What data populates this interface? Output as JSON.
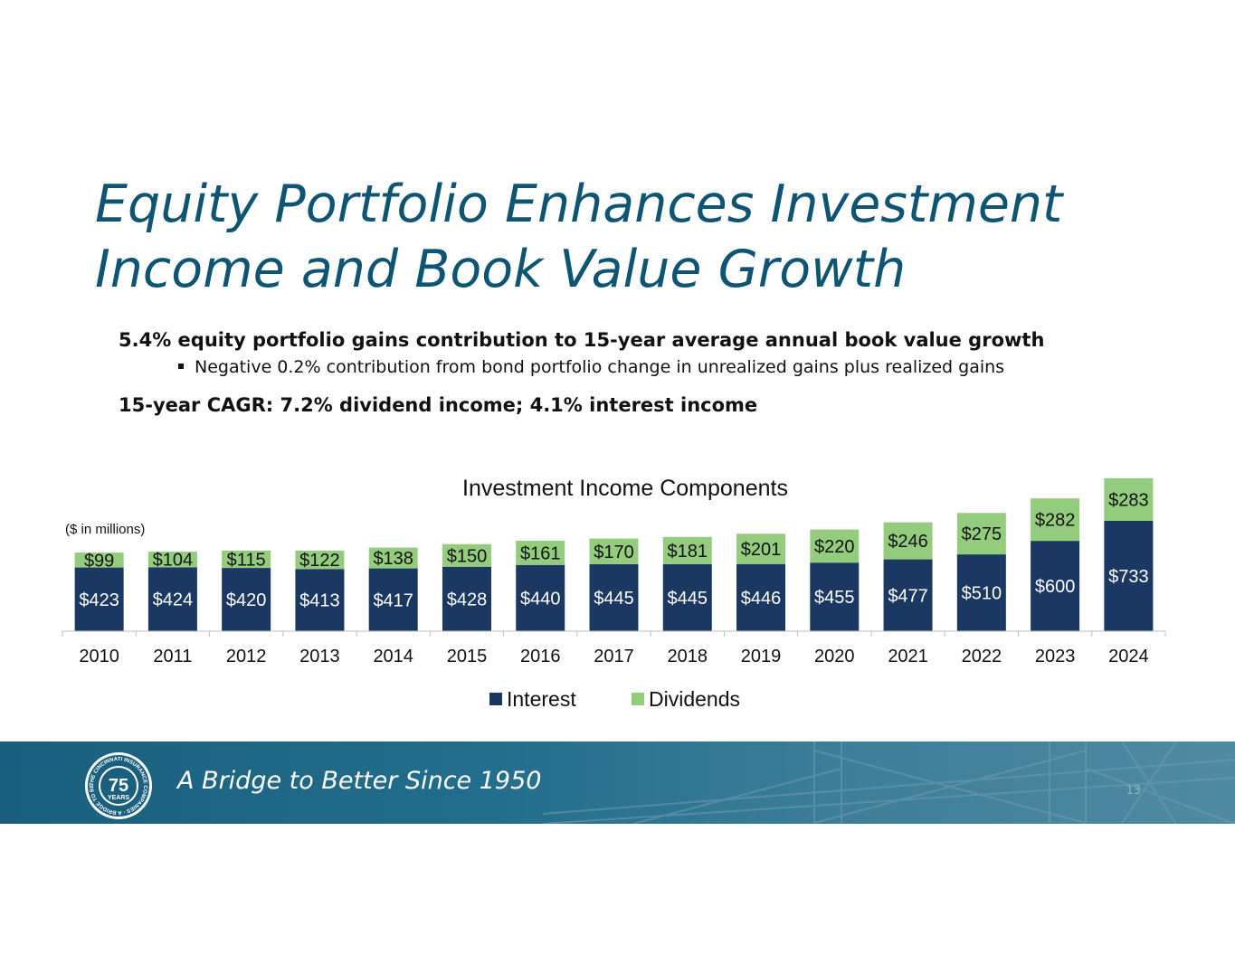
{
  "slide": {
    "title_line1": "Equity Portfolio Enhances Investment",
    "title_line2": "Income and Book Value Growth",
    "bullet1": "5.4% equity portfolio gains contribution to 15-year average annual book value growth",
    "sub_bullet1": "Negative 0.2% contribution from bond portfolio change in unrealized gains plus realized gains",
    "bullet2": "15-year CAGR: 7.2% dividend income; 4.1% interest income",
    "page_number": "13"
  },
  "footer": {
    "tagline": "A Bridge to Better Since 1950",
    "seal_number": "75",
    "seal_word": "YEARS",
    "seal_ring_text": "THE CINCINNATI INSURANCE COMPANIES · A BRIDGE TO BETTER"
  },
  "colors": {
    "interest": "#1a3862",
    "dividends": "#93cc7d",
    "title": "#0e5573"
  },
  "chart_data": {
    "type": "bar",
    "stacked": true,
    "title": "Investment Income Components",
    "unit_note": "($ in millions)",
    "categories": [
      "2010",
      "2011",
      "2012",
      "2013",
      "2014",
      "2015",
      "2016",
      "2017",
      "2018",
      "2019",
      "2020",
      "2021",
      "2022",
      "2023",
      "2024"
    ],
    "series": [
      {
        "name": "Interest",
        "values": [
          423,
          424,
          420,
          413,
          417,
          428,
          440,
          445,
          445,
          446,
          455,
          477,
          510,
          600,
          733
        ]
      },
      {
        "name": "Dividends",
        "values": [
          99,
          104,
          115,
          122,
          138,
          150,
          161,
          170,
          181,
          201,
          220,
          246,
          275,
          282,
          283
        ]
      }
    ],
    "value_prefix": "$",
    "legend": "bottom-center",
    "grid": false
  }
}
